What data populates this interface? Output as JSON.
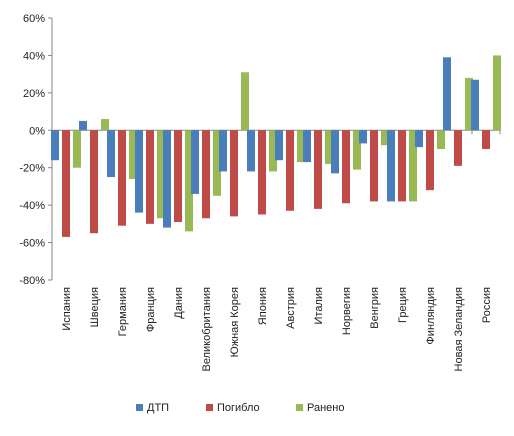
{
  "chart_data": {
    "type": "bar",
    "title": "",
    "xlabel": "",
    "ylabel": "",
    "ylim": [
      -80,
      60
    ],
    "yticks": [
      -80,
      -60,
      -40,
      -20,
      0,
      20,
      40,
      60
    ],
    "ytick_labels": [
      "-80%",
      "-60%",
      "-40%",
      "-20%",
      "0%",
      "20%",
      "40%",
      "60%"
    ],
    "grid": false,
    "legend_position": "bottom",
    "categories": [
      "Испания",
      "Швеция",
      "Германия",
      "Франция",
      "Дания",
      "Великобритания",
      "Южная Корея",
      "Япония",
      "Австрия",
      "Италия",
      "Норвегия",
      "Венгрия",
      "Греция",
      "Финляндия",
      "Новая Зеландия",
      "Россия"
    ],
    "series": [
      {
        "name": "ДТП",
        "color": "#4a7ebb",
        "values": [
          -16,
          5,
          -25,
          -44,
          -52,
          -34,
          -22,
          -22,
          -16,
          -17,
          -23,
          -7,
          -38,
          -9,
          39,
          27
        ]
      },
      {
        "name": "Погибло",
        "color": "#be4b48",
        "values": [
          -57,
          -55,
          -51,
          -50,
          -49,
          -47,
          -46,
          -45,
          -43,
          -42,
          -39,
          -38,
          -38,
          -32,
          -19,
          -10
        ]
      },
      {
        "name": "Ранено",
        "color": "#98b954",
        "values": [
          -20,
          6,
          -26,
          -47,
          -54,
          -35,
          31,
          -22,
          -17,
          -18,
          -21,
          -8,
          -38,
          -10,
          28,
          40
        ]
      }
    ]
  }
}
